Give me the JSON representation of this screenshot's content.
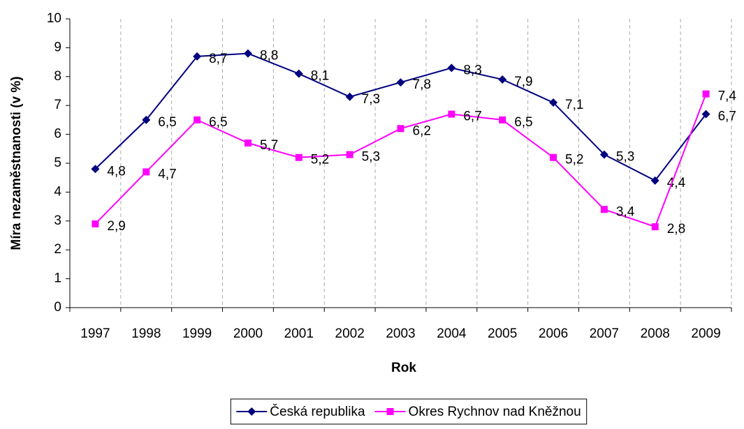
{
  "chart_data": {
    "type": "line",
    "x_label": "Rok",
    "y_label": "Míra nezaměstnanosti (v %)",
    "categories": [
      "1997",
      "1998",
      "1999",
      "2000",
      "2001",
      "2002",
      "2003",
      "2004",
      "2005",
      "2006",
      "2007",
      "2008",
      "2009"
    ],
    "series": [
      {
        "name": "Česká republika",
        "color": "#000080",
        "marker": "diamond",
        "values": [
          4.8,
          6.5,
          8.7,
          8.8,
          8.1,
          7.3,
          7.8,
          8.3,
          7.9,
          7.1,
          5.3,
          4.4,
          6.7
        ],
        "value_labels": [
          "4,8",
          "6,5",
          "8,7",
          "8,8",
          "8,1",
          "7,3",
          "7,8",
          "8,3",
          "7,9",
          "7,1",
          "5,3",
          "4,4",
          "6,7"
        ]
      },
      {
        "name": "Okres Rychnov nad Kněžnou",
        "color": "#ff00ff",
        "marker": "square",
        "values": [
          2.9,
          4.7,
          6.5,
          5.7,
          5.2,
          5.3,
          6.2,
          6.7,
          6.5,
          5.2,
          3.4,
          2.8,
          7.4
        ],
        "value_labels": [
          "2,9",
          "4,7",
          "6,5",
          "5,7",
          "5,2",
          "5,3",
          "6,2",
          "6,7",
          "6,5",
          "5,2",
          "3,4",
          "2,8",
          "7,4"
        ]
      }
    ],
    "ylim": [
      0,
      10
    ],
    "yticks": [
      0,
      1,
      2,
      3,
      4,
      5,
      6,
      7,
      8,
      9,
      10
    ],
    "grid": true,
    "legend": "bottom"
  }
}
